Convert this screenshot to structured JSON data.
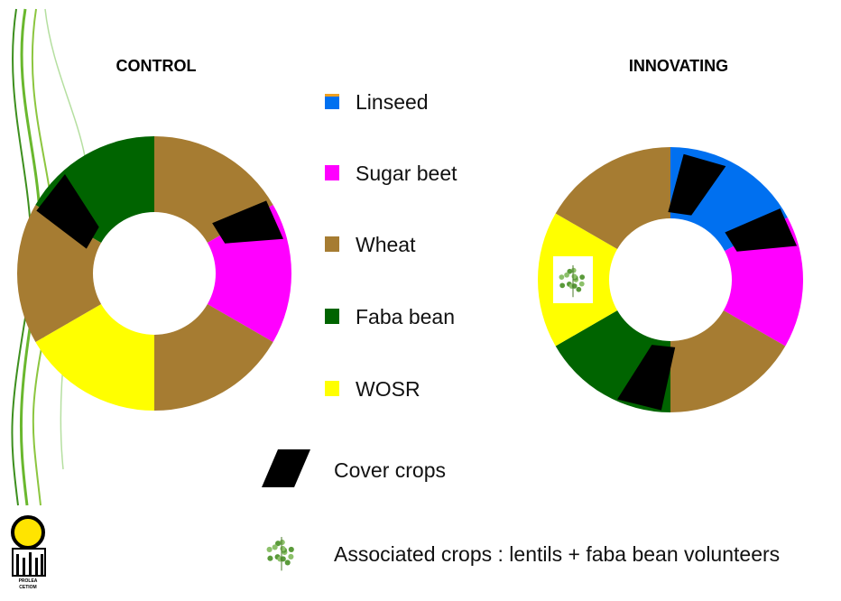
{
  "charts": {
    "control": {
      "title": "CONTROL"
    },
    "innovating": {
      "title": "INNOVATING"
    }
  },
  "legend": {
    "items": [
      "Linseed",
      "Sugar beet",
      "Wheat",
      "Faba bean",
      "WOSR"
    ],
    "cover_crops": "Cover crops",
    "associated_crops": "Associated crops : lentils + faba bean volunteers"
  },
  "logo": {
    "lines": [
      "PROLEA",
      "CETIOM"
    ]
  }
}
